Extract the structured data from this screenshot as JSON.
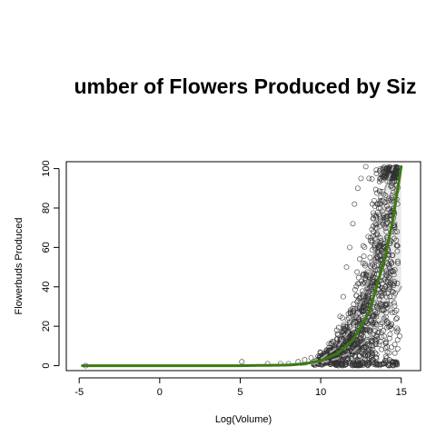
{
  "chart_data": {
    "type": "scatter",
    "title": "umber of Flowers Produced by Siz",
    "xlabel": "Log(Volume)",
    "ylabel": "Flowerbuds Produced",
    "xlim": [
      -5.8,
      16.2
    ],
    "ylim": [
      -2.5,
      103.5
    ],
    "x_ticks": [
      -5,
      0,
      5,
      10,
      15
    ],
    "y_ticks": [
      0,
      20,
      40,
      60,
      80,
      100
    ],
    "grid": false,
    "legend": "none",
    "colors": {
      "points": "#333333",
      "fit_line": "#3b7a12",
      "ci_line": "#a6a6a6",
      "ci_fill": "#e8e8e8"
    },
    "series": [
      {
        "role": "observed",
        "points_sample": [
          [
            -4.6,
            0
          ],
          [
            5.1,
            2
          ],
          [
            6.7,
            1
          ],
          [
            7.5,
            1
          ],
          [
            8.0,
            1
          ],
          [
            8.6,
            2
          ],
          [
            9.0,
            3
          ],
          [
            9.4,
            4
          ],
          [
            9.8,
            2
          ],
          [
            10.2,
            4
          ],
          [
            10.5,
            8
          ],
          [
            10.8,
            12
          ],
          [
            11.0,
            18
          ],
          [
            11.2,
            25
          ],
          [
            11.4,
            35
          ],
          [
            11.6,
            50
          ],
          [
            11.8,
            60
          ],
          [
            12.0,
            72
          ],
          [
            12.1,
            82
          ],
          [
            12.3,
            90
          ],
          [
            12.5,
            95
          ],
          [
            12.8,
            101
          ],
          [
            13.0,
            95
          ],
          [
            13.2,
            82
          ],
          [
            13.4,
            70
          ],
          [
            13.6,
            60
          ],
          [
            13.8,
            45
          ],
          [
            14.0,
            40
          ],
          [
            14.3,
            35
          ],
          [
            14.6,
            27
          ],
          [
            14.8,
            18
          ],
          [
            14.9,
            15
          ]
        ],
        "approx_count": 1200
      },
      {
        "role": "fit",
        "x": [
          -4.8,
          0,
          5,
          8,
          9,
          10,
          11,
          12,
          13,
          14,
          14.5,
          15
        ],
        "y": [
          0,
          0,
          0,
          0.3,
          1,
          2.5,
          6,
          13,
          27,
          55,
          75,
          101
        ]
      },
      {
        "role": "ci_upper",
        "x": [
          -4.8,
          0,
          5,
          8,
          9,
          10,
          11,
          12,
          13,
          13.5,
          14,
          14.5
        ],
        "y": [
          0,
          0,
          0.1,
          0.5,
          1.5,
          3.5,
          9,
          20,
          45,
          65,
          90,
          101
        ]
      },
      {
        "role": "ci_lower",
        "x": [
          -4.8,
          0,
          5,
          8,
          9,
          10,
          11,
          12,
          13,
          14,
          15
        ],
        "y": [
          0,
          0,
          0,
          0.1,
          0.5,
          1.5,
          3.5,
          7,
          14,
          25,
          40
        ]
      }
    ]
  }
}
